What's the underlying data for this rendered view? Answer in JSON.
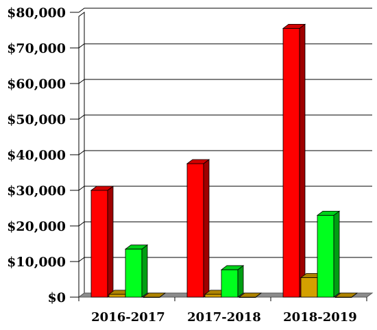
{
  "chart_data": {
    "type": "bar",
    "style": "3d-clustered",
    "categories": [
      "2016-2017",
      "2017-2018",
      "2018-2019"
    ],
    "series": [
      {
        "color": "#ff0000",
        "values": [
          30000,
          37500,
          75500
        ]
      },
      {
        "color": "#d4a000",
        "values": [
          800,
          800,
          5500
        ]
      },
      {
        "color": "#00ff1e",
        "values": [
          13500,
          7700,
          23000
        ]
      },
      {
        "color": "#d4a000",
        "values": [
          0,
          0,
          0
        ]
      }
    ],
    "y_ticks": [
      "$0",
      "$10,000",
      "$20,000",
      "$30,000",
      "$40,000",
      "$50,000",
      "$60,000",
      "$70,000",
      "$80,000"
    ],
    "ylim": [
      0,
      80000
    ],
    "grid": true,
    "legend": "none"
  }
}
